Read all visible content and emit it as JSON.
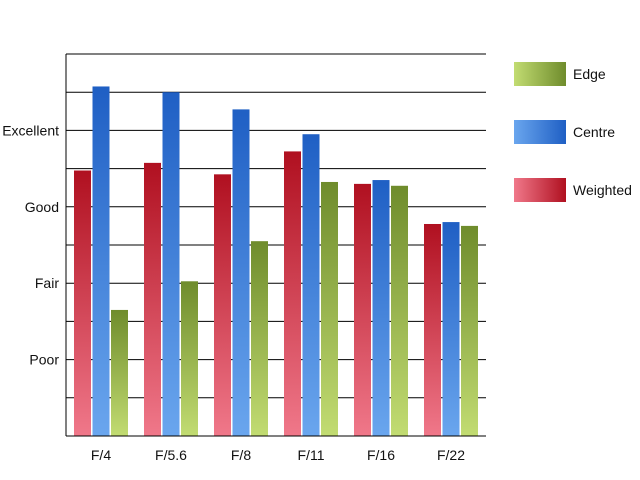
{
  "chart_data": {
    "type": "bar",
    "title": "",
    "xlabel": "",
    "ylabel": "",
    "categories": [
      "F/4",
      "F/5.6",
      "F/8",
      "F/11",
      "F/16",
      "F/22"
    ],
    "ylim": [
      0,
      10
    ],
    "yticks": [
      {
        "value": 2,
        "label": "Poor"
      },
      {
        "value": 4,
        "label": "Fair"
      },
      {
        "value": 6,
        "label": "Good"
      },
      {
        "value": 8,
        "label": "Excellent"
      }
    ],
    "grid": true,
    "legend_position": "right",
    "series": [
      {
        "name": "Weighted",
        "values": [
          6.95,
          7.15,
          6.85,
          7.45,
          6.6,
          5.55
        ],
        "color_light": "#f0788a",
        "color_dark": "#b01020"
      },
      {
        "name": "Centre",
        "values": [
          9.15,
          9.0,
          8.55,
          7.9,
          6.7,
          5.6
        ],
        "color_light": "#6aa6ee",
        "color_dark": "#1f5fc4"
      },
      {
        "name": "Edge",
        "values": [
          3.3,
          4.05,
          5.1,
          6.65,
          6.55,
          5.5
        ],
        "color_light": "#c2dc72",
        "color_dark": "#6f8c2c"
      }
    ],
    "legend_order": [
      "Edge",
      "Centre",
      "Weighted"
    ]
  }
}
